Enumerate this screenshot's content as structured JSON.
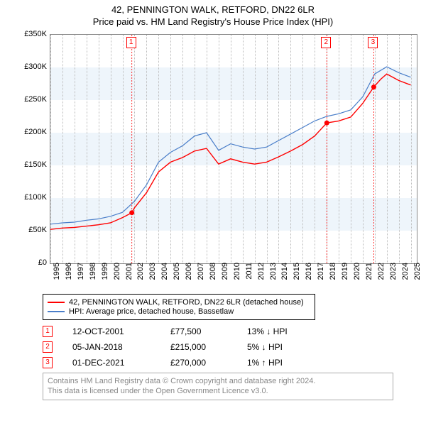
{
  "title": "42, PENNINGTON WALK, RETFORD, DN22 6LR",
  "subtitle": "Price paid vs. HM Land Registry's House Price Index (HPI)",
  "chart": {
    "type": "line",
    "x_start": 1995,
    "x_end": 2025.5,
    "xticks": [
      1995,
      1996,
      1997,
      1998,
      1999,
      2000,
      2001,
      2002,
      2003,
      2004,
      2005,
      2006,
      2007,
      2008,
      2009,
      2010,
      2011,
      2012,
      2013,
      2014,
      2015,
      2016,
      2017,
      2018,
      2019,
      2020,
      2021,
      2022,
      2023,
      2024,
      2025
    ],
    "y_min": 0,
    "y_max": 350000,
    "yticks": [
      0,
      50000,
      100000,
      150000,
      200000,
      250000,
      300000,
      350000
    ],
    "yticklabels": [
      "£0",
      "£50K",
      "£100K",
      "£150K",
      "£200K",
      "£250K",
      "£300K",
      "£350K"
    ],
    "band_color": "#eef5fb",
    "grid_color": "#bbbbbb",
    "background_color": "#ffffff",
    "series": [
      {
        "name": "hpi",
        "label": "HPI: Average price, detached house, Bassetlaw",
        "color": "#4a7ec9",
        "width": 1.2,
        "points": [
          [
            1995,
            60000
          ],
          [
            1996,
            62000
          ],
          [
            1997,
            63000
          ],
          [
            1998,
            66000
          ],
          [
            1999,
            68000
          ],
          [
            2000,
            72000
          ],
          [
            2001,
            78000
          ],
          [
            2002,
            95000
          ],
          [
            2003,
            120000
          ],
          [
            2004,
            155000
          ],
          [
            2005,
            170000
          ],
          [
            2006,
            180000
          ],
          [
            2007,
            195000
          ],
          [
            2008,
            200000
          ],
          [
            2009,
            173000
          ],
          [
            2010,
            183000
          ],
          [
            2011,
            178000
          ],
          [
            2012,
            175000
          ],
          [
            2013,
            178000
          ],
          [
            2014,
            188000
          ],
          [
            2015,
            198000
          ],
          [
            2016,
            208000
          ],
          [
            2017,
            218000
          ],
          [
            2018,
            225000
          ],
          [
            2019,
            229000
          ],
          [
            2020,
            235000
          ],
          [
            2021,
            255000
          ],
          [
            2022,
            290000
          ],
          [
            2023,
            301000
          ],
          [
            2024,
            292000
          ],
          [
            2025,
            285000
          ]
        ]
      },
      {
        "name": "property",
        "label": "42, PENNINGTON WALK, RETFORD, DN22 6LR (detached house)",
        "color": "#ff0000",
        "width": 1.4,
        "points": [
          [
            1995,
            52000
          ],
          [
            1996,
            54000
          ],
          [
            1997,
            55000
          ],
          [
            1998,
            57000
          ],
          [
            1999,
            59000
          ],
          [
            2000,
            62000
          ],
          [
            2001,
            70000
          ],
          [
            2001.78,
            77500
          ],
          [
            2002,
            85000
          ],
          [
            2003,
            108000
          ],
          [
            2004,
            140000
          ],
          [
            2005,
            155000
          ],
          [
            2006,
            162000
          ],
          [
            2007,
            172000
          ],
          [
            2008,
            176000
          ],
          [
            2009,
            152000
          ],
          [
            2010,
            160000
          ],
          [
            2011,
            155000
          ],
          [
            2012,
            152000
          ],
          [
            2013,
            155000
          ],
          [
            2014,
            163000
          ],
          [
            2015,
            172000
          ],
          [
            2016,
            182000
          ],
          [
            2017,
            195000
          ],
          [
            2018.01,
            215000
          ],
          [
            2019,
            218000
          ],
          [
            2020,
            224000
          ],
          [
            2021,
            245000
          ],
          [
            2021.92,
            270000
          ],
          [
            2022.5,
            282000
          ],
          [
            2023,
            290000
          ],
          [
            2024,
            280000
          ],
          [
            2025,
            273000
          ]
        ]
      }
    ],
    "markers": [
      {
        "n": "1",
        "x": 2001.78,
        "y": 77500,
        "box_y_top": true
      },
      {
        "n": "2",
        "x": 2018.01,
        "y": 215000,
        "box_y_top": true
      },
      {
        "n": "3",
        "x": 2021.92,
        "y": 270000,
        "box_y_top": true
      }
    ]
  },
  "legend": {
    "items": [
      {
        "color": "#ff0000",
        "label": "42, PENNINGTON WALK, RETFORD, DN22 6LR (detached house)"
      },
      {
        "color": "#4a7ec9",
        "label": "HPI: Average price, detached house, Bassetlaw"
      }
    ]
  },
  "callouts": [
    {
      "n": "1",
      "date": "12-OCT-2001",
      "price": "£77,500",
      "delta": "13% ↓ HPI"
    },
    {
      "n": "2",
      "date": "05-JAN-2018",
      "price": "£215,000",
      "delta": "5% ↓ HPI"
    },
    {
      "n": "3",
      "date": "01-DEC-2021",
      "price": "£270,000",
      "delta": "1% ↑ HPI"
    }
  ],
  "footer": {
    "line1": "Contains HM Land Registry data © Crown copyright and database right 2024.",
    "line2": "This data is licensed under the Open Government Licence v3.0."
  }
}
